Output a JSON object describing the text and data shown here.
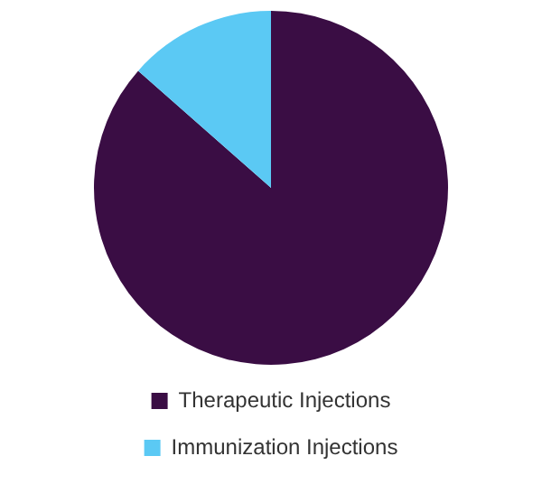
{
  "chart_data": {
    "type": "pie",
    "categories": [
      "Therapeutic Injections",
      "Immunization Injections"
    ],
    "values": [
      86.5,
      13.5
    ],
    "colors": [
      "#3a0d44",
      "#5bc9f4"
    ],
    "legend": "bottom"
  }
}
